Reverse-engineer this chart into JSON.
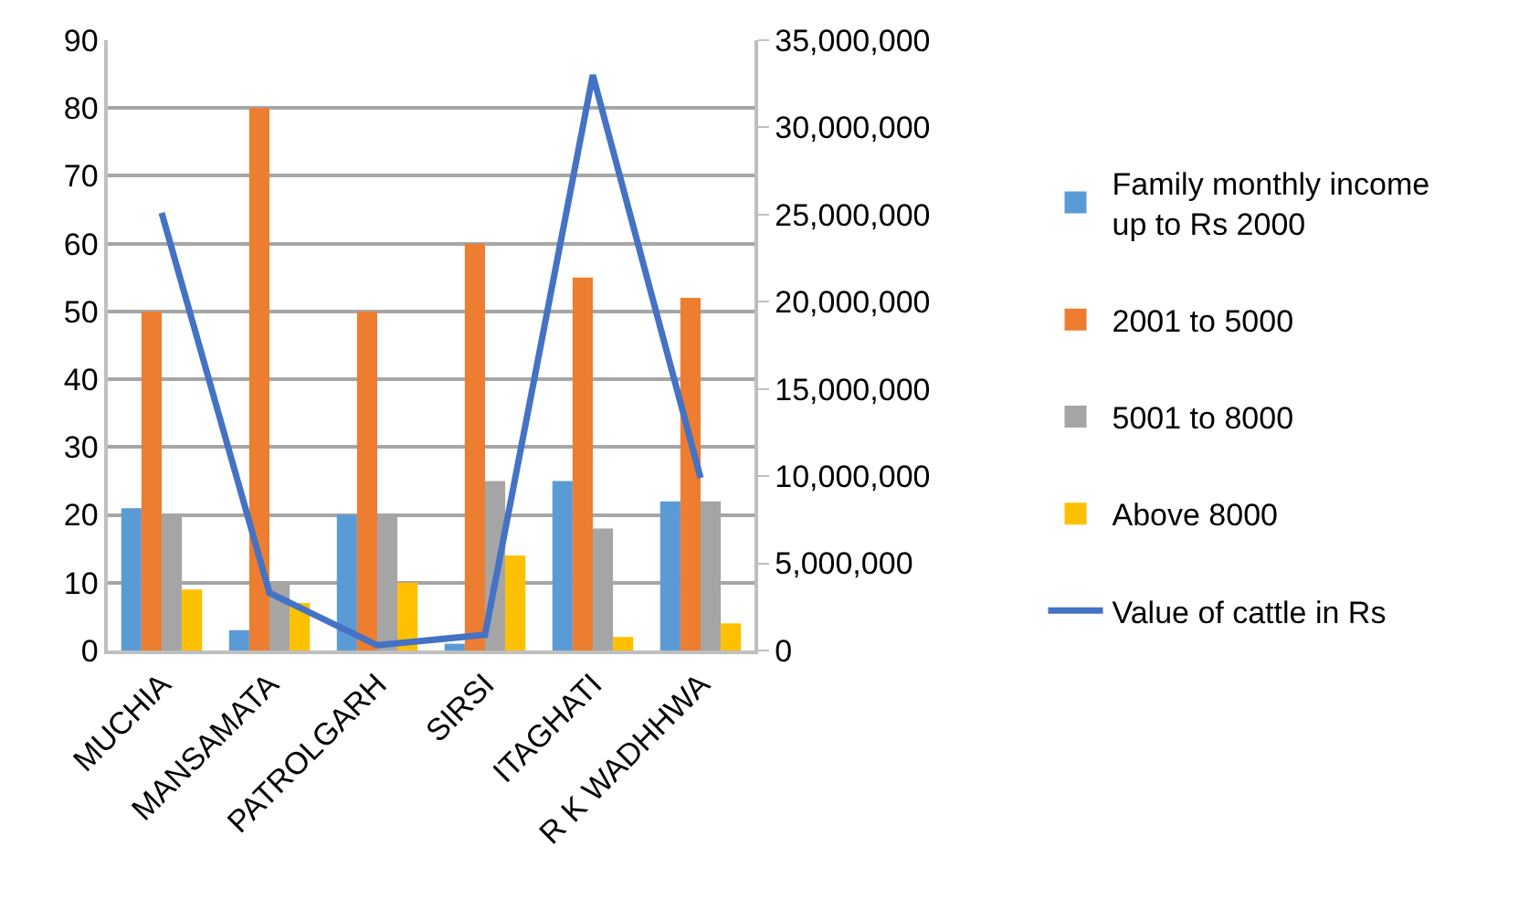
{
  "chart_data": {
    "type": "bar",
    "categories": [
      "MUCHIA",
      "MANSAMATA",
      "PATROLGARH",
      "SIRSI",
      "ITAGHATI",
      "R K WADHHWA"
    ],
    "series": [
      {
        "name": "Family monthly income up to Rs 2000",
        "color": "#5b9bd5",
        "values": [
          21,
          3,
          20,
          1,
          25,
          22
        ]
      },
      {
        "name": "2001 to 5000",
        "color": "#ed7d31",
        "values": [
          50,
          80,
          50,
          60,
          55,
          52
        ]
      },
      {
        "name": "5001 to 8000",
        "color": "#a5a5a5",
        "values": [
          20,
          10,
          20,
          25,
          18,
          22
        ]
      },
      {
        "name": "Above 8000",
        "color": "#ffc000",
        "values": [
          9,
          7,
          10,
          14,
          2,
          4
        ]
      },
      {
        "name": "Value of cattle in Rs",
        "type": "line",
        "axis": "y2",
        "color": "#4472c4",
        "marker": "none",
        "values": [
          25100000,
          3300000,
          300000,
          900000,
          33000000,
          9900000
        ]
      }
    ],
    "ylim": [
      0,
      90
    ],
    "yticks": [
      0,
      10,
      20,
      30,
      40,
      50,
      60,
      70,
      80,
      90
    ],
    "y2lim": [
      0,
      35000000
    ],
    "y2ticks": [
      {
        "value": 0,
        "label": "0"
      },
      {
        "value": 5000000,
        "label": "5,000,000"
      },
      {
        "value": 10000000,
        "label": "10,000,000"
      },
      {
        "value": 15000000,
        "label": "15,000,000"
      },
      {
        "value": 20000000,
        "label": "20,000,000"
      },
      {
        "value": 25000000,
        "label": "25,000,000"
      },
      {
        "value": 30000000,
        "label": "30,000,000"
      },
      {
        "value": 35000000,
        "label": "35,000,000"
      }
    ],
    "grid": "y",
    "legend": "right"
  }
}
